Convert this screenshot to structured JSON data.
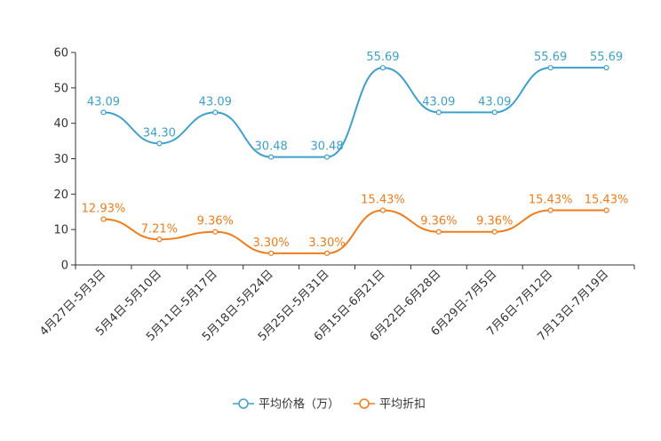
{
  "chart_data": {
    "type": "line",
    "title": "",
    "xlabel": "",
    "ylabel": "",
    "ylim": [
      0,
      60
    ],
    "yticks": [
      0,
      10,
      20,
      30,
      40,
      50,
      60
    ],
    "grid": false,
    "legend_position": "bottom-center",
    "categories": [
      "4月27日-5月3日",
      "5月4日-5月10日",
      "5月11日-5月17日",
      "5月18日-5月24日",
      "5月25日-5月31日",
      "6月15日-6月21日",
      "6月22日-6月28日",
      "6月29日-7月5日",
      "7月6日-7月12日",
      "7月13日-7月19日"
    ],
    "series": [
      {
        "name": "平均价格（万）",
        "color": "#3fa0cc",
        "values": [
          43.09,
          34.3,
          43.09,
          30.48,
          30.48,
          55.69,
          43.09,
          43.09,
          55.69,
          55.69
        ],
        "labels": [
          "43.09",
          "34.30",
          "43.09",
          "30.48",
          "30.48",
          "55.69",
          "43.09",
          "43.09",
          "55.69",
          "55.69"
        ]
      },
      {
        "name": "平均折扣",
        "color": "#f07c1b",
        "values": [
          12.93,
          7.21,
          9.36,
          3.3,
          3.3,
          15.43,
          9.36,
          9.36,
          15.43,
          15.43
        ],
        "labels": [
          "12.93%",
          "7.21%",
          "9.36%",
          "3.30%",
          "3.30%",
          "15.43%",
          "9.36%",
          "9.36%",
          "15.43%",
          "15.43%"
        ]
      }
    ]
  }
}
